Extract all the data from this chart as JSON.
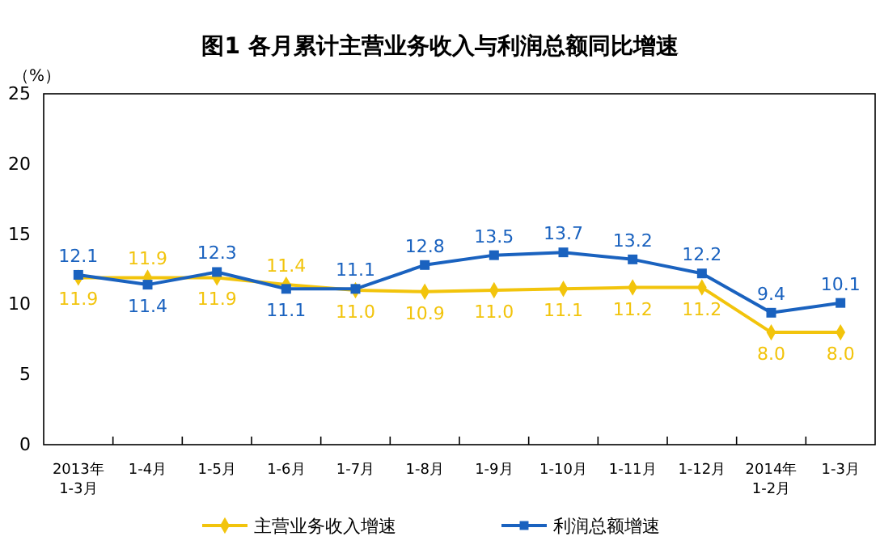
{
  "chart_data": {
    "type": "line",
    "title": "图1  各月累计主营业务收入与利润总额同比增速",
    "ylabel": "（%）",
    "categories": [
      "2013年\n1-3月",
      "1-4月",
      "1-5月",
      "1-6月",
      "1-7月",
      "1-8月",
      "1-9月",
      "1-10月",
      "1-11月",
      "1-12月",
      "2014年\n1-2月",
      "1-3月"
    ],
    "series": [
      {
        "name": "主营业务收入增速",
        "color": "#f2c40c",
        "marker": "diamond",
        "values": [
          11.9,
          11.9,
          11.9,
          11.4,
          11.0,
          10.9,
          11.0,
          11.1,
          11.2,
          11.2,
          8.0,
          8.0
        ],
        "value_labels": [
          "11.9",
          "11.9",
          "11.9",
          "11.4",
          "11.0",
          "10.9",
          "11.0",
          "11.1",
          "11.2",
          "11.2",
          "8.0",
          "8.0"
        ]
      },
      {
        "name": "利润总额增速",
        "color": "#1a62bf",
        "marker": "square",
        "values": [
          12.1,
          11.4,
          12.3,
          11.1,
          11.1,
          12.8,
          13.5,
          13.7,
          13.2,
          12.2,
          9.4,
          10.1
        ],
        "value_labels": [
          "12.1",
          "11.4",
          "12.3",
          "11.1",
          "11.1",
          "12.8",
          "13.5",
          "13.7",
          "13.2",
          "12.2",
          "9.4",
          "10.1"
        ]
      }
    ],
    "ylim": [
      0,
      25
    ],
    "yticks": [
      0,
      5,
      10,
      15,
      20,
      25
    ],
    "grid": false,
    "legend": "bottom",
    "line_style": "solid"
  }
}
